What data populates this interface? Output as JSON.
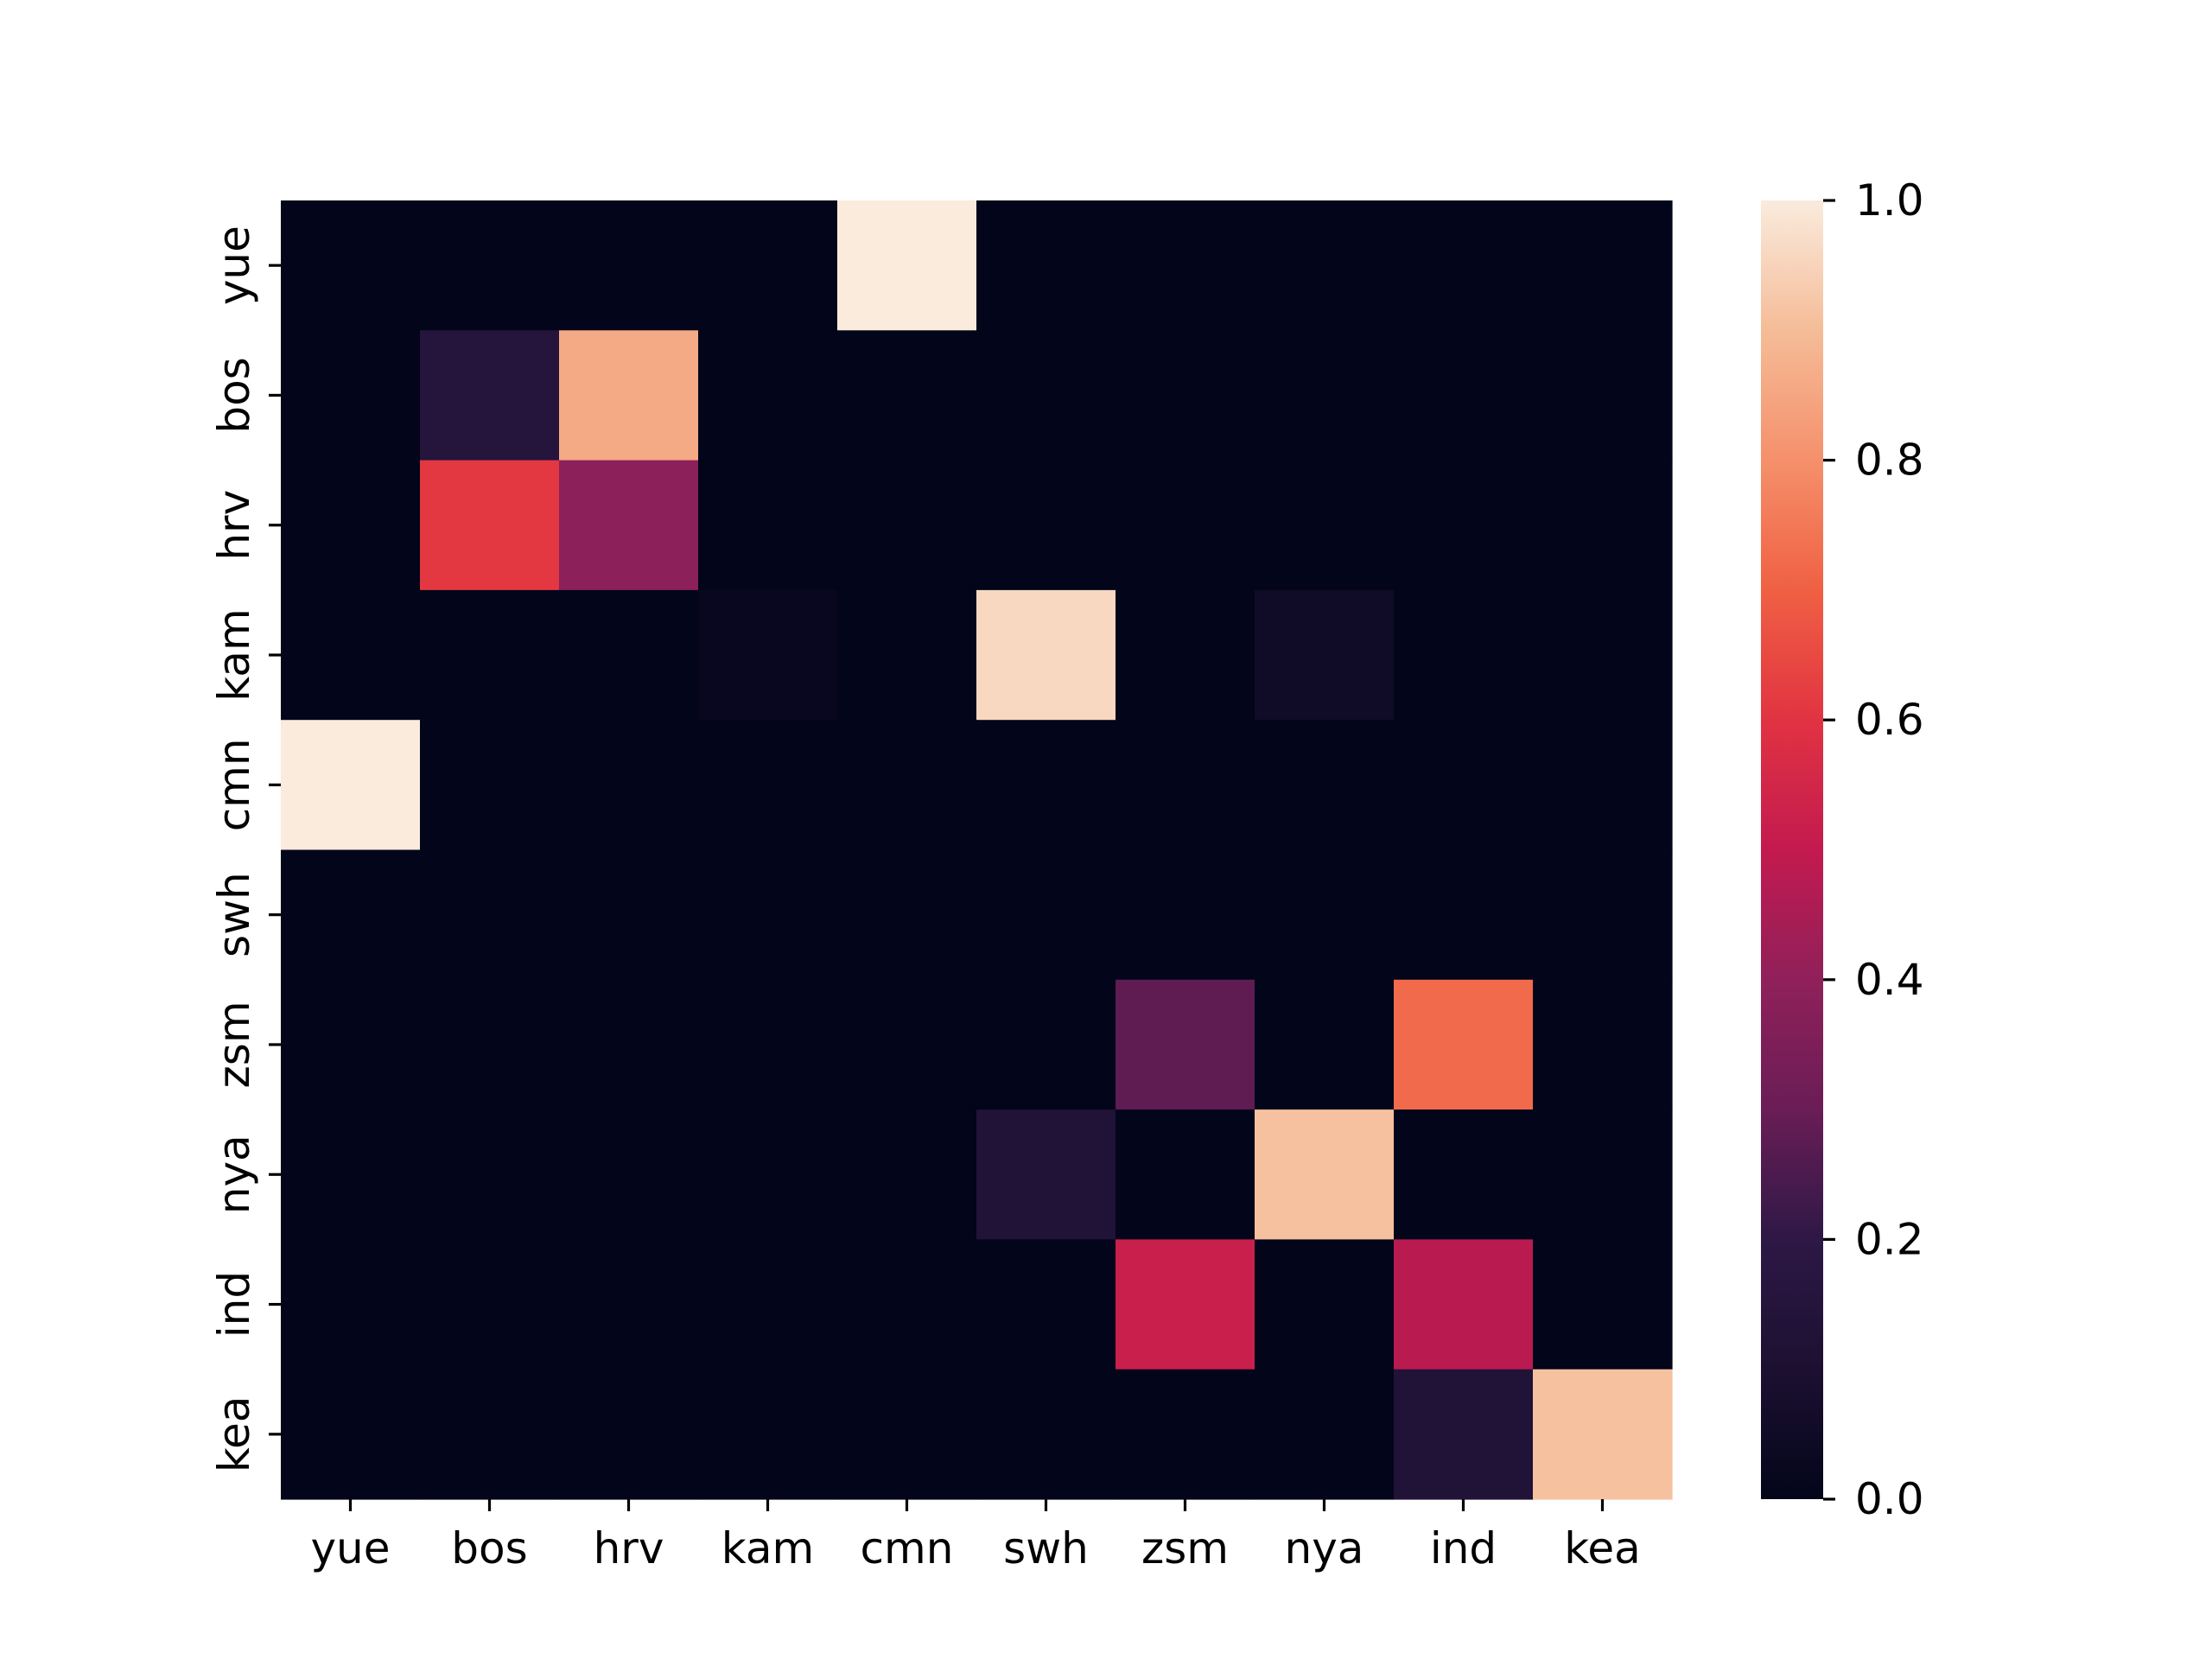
{
  "chart_data": {
    "type": "heatmap",
    "x_categories": [
      "yue",
      "bos",
      "hrv",
      "kam",
      "cmn",
      "swh",
      "zsm",
      "nya",
      "ind",
      "kea"
    ],
    "y_categories": [
      "yue",
      "bos",
      "hrv",
      "kam",
      "cmn",
      "swh",
      "zsm",
      "nya",
      "ind",
      "kea"
    ],
    "values": [
      [
        0.0,
        0.0,
        0.0,
        0.0,
        1.0,
        0.0,
        0.0,
        0.0,
        0.0,
        0.0
      ],
      [
        0.0,
        0.15,
        0.86,
        0.0,
        0.0,
        0.0,
        0.0,
        0.0,
        0.0,
        0.0
      ],
      [
        0.0,
        0.61,
        0.39,
        0.0,
        0.0,
        0.0,
        0.0,
        0.0,
        0.0,
        0.0
      ],
      [
        0.0,
        0.0,
        0.0,
        0.02,
        0.0,
        0.96,
        0.0,
        0.05,
        0.0,
        0.0
      ],
      [
        1.0,
        0.0,
        0.0,
        0.0,
        0.0,
        0.0,
        0.0,
        0.0,
        0.0,
        0.0
      ],
      [
        0.0,
        0.0,
        0.0,
        0.0,
        0.0,
        0.0,
        0.0,
        0.0,
        0.0,
        0.0
      ],
      [
        0.0,
        0.0,
        0.0,
        0.0,
        0.0,
        0.0,
        0.28,
        0.0,
        0.72,
        0.0
      ],
      [
        0.0,
        0.0,
        0.0,
        0.0,
        0.0,
        0.13,
        0.0,
        0.91,
        0.0,
        0.0
      ],
      [
        0.0,
        0.0,
        0.0,
        0.0,
        0.0,
        0.0,
        0.52,
        0.0,
        0.48,
        0.0
      ],
      [
        0.0,
        0.0,
        0.0,
        0.0,
        0.0,
        0.0,
        0.0,
        0.0,
        0.13,
        0.91
      ]
    ],
    "colormap": "rocket",
    "vmin": 0.0,
    "vmax": 1.0,
    "colorbar_ticks": [
      "0.0",
      "0.2",
      "0.4",
      "0.6",
      "0.8",
      "1.0"
    ],
    "colorbar_tick_values": [
      0.0,
      0.2,
      0.4,
      0.6,
      0.8,
      1.0
    ],
    "title": "",
    "xlabel": "",
    "ylabel": ""
  }
}
